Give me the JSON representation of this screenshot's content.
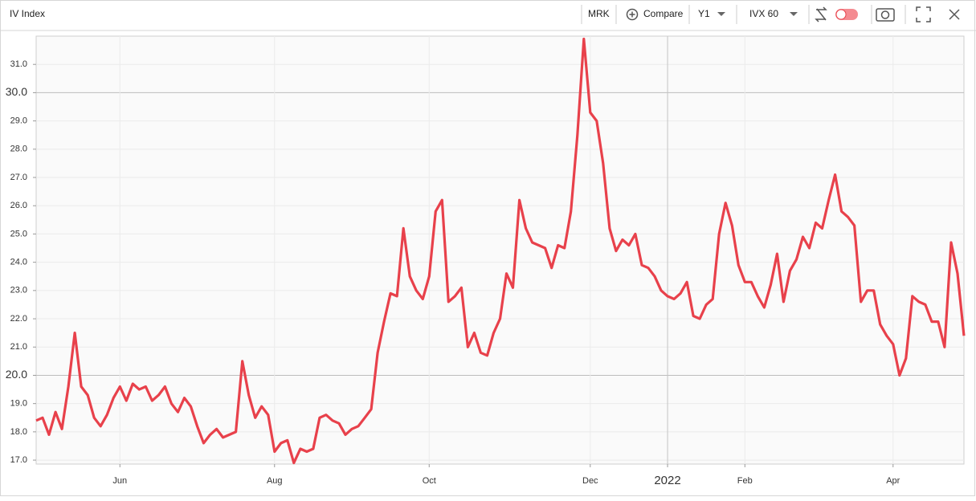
{
  "chart_data": {
    "type": "line",
    "title": "IV Index",
    "toolbar": {
      "symbol": "MRK",
      "compare": "Compare",
      "period": "Y1",
      "indicator": "IVX 60"
    },
    "color": "#e8414b",
    "categories": [
      null,
      null,
      null,
      null,
      null,
      null,
      null,
      null,
      null,
      null,
      null,
      null,
      null,
      "Jun",
      null,
      null,
      null,
      null,
      null,
      null,
      null,
      null,
      null,
      null,
      null,
      null,
      null,
      null,
      null,
      null,
      null,
      null,
      null,
      null,
      null,
      null,
      null,
      "Aug",
      null,
      null,
      null,
      null,
      null,
      null,
      null,
      null,
      null,
      null,
      null,
      null,
      null,
      null,
      null,
      null,
      null,
      null,
      null,
      null,
      null,
      null,
      null,
      "Oct",
      null,
      null,
      null,
      null,
      null,
      null,
      null,
      null,
      null,
      null,
      null,
      null,
      null,
      null,
      null,
      null,
      null,
      null,
      null,
      null,
      null,
      null,
      null,
      null,
      "Dec",
      null,
      null,
      null,
      null,
      null,
      null,
      null,
      null,
      null,
      null,
      null,
      "2022",
      null,
      null,
      null,
      null,
      null,
      null,
      null,
      null,
      null,
      null,
      null,
      "Feb",
      null,
      null,
      null,
      null,
      null,
      null,
      null,
      null,
      null,
      null,
      null,
      null,
      null,
      null,
      null,
      null,
      null,
      null,
      null,
      null,
      null,
      null,
      "Apr",
      null,
      null,
      null,
      null,
      null,
      null,
      null,
      null,
      null,
      null,
      null
    ],
    "values": [
      18.4,
      18.5,
      17.9,
      18.7,
      18.1,
      19.6,
      21.5,
      19.6,
      19.3,
      18.5,
      18.2,
      18.6,
      19.2,
      19.6,
      19.1,
      19.7,
      19.5,
      19.6,
      19.1,
      19.3,
      19.6,
      19.0,
      18.7,
      19.2,
      18.9,
      18.2,
      17.6,
      17.9,
      18.1,
      17.8,
      17.9,
      18.0,
      20.5,
      19.3,
      18.5,
      18.9,
      18.6,
      17.3,
      17.6,
      17.7,
      16.9,
      17.4,
      17.3,
      17.4,
      18.5,
      18.6,
      18.4,
      18.3,
      17.9,
      18.1,
      18.2,
      18.5,
      18.8,
      20.8,
      21.9,
      22.9,
      22.8,
      25.2,
      23.5,
      23.0,
      22.7,
      23.5,
      25.8,
      26.2,
      22.6,
      22.8,
      23.1,
      21.0,
      21.5,
      20.8,
      20.7,
      21.5,
      22.0,
      23.6,
      23.1,
      26.2,
      25.2,
      24.7,
      24.6,
      24.5,
      23.8,
      24.6,
      24.5,
      25.8,
      28.5,
      31.9,
      29.3,
      29.0,
      27.5,
      25.2,
      24.4,
      24.8,
      24.6,
      25.0,
      23.9,
      23.8,
      23.5,
      23.0,
      22.8,
      22.7,
      22.9,
      23.3,
      22.1,
      22.0,
      22.5,
      22.7,
      25.0,
      26.1,
      25.3,
      23.9,
      23.3,
      23.3,
      22.8,
      22.4,
      23.2,
      24.3,
      22.6,
      23.7,
      24.1,
      24.9,
      24.5,
      25.4,
      25.2,
      26.2,
      27.1,
      25.8,
      25.6,
      25.3,
      22.6,
      23.0,
      23.0,
      21.8,
      21.4,
      21.1,
      20.0,
      20.6,
      22.8,
      22.6,
      22.5,
      21.9,
      21.9,
      21.0,
      24.7,
      23.6,
      21.4
    ],
    "ylim": [
      16.86,
      32.0
    ],
    "yticks": [
      {
        "value": 17,
        "label": "17.0"
      },
      {
        "value": 18,
        "label": "18.0"
      },
      {
        "value": 19,
        "label": "19.0"
      },
      {
        "value": 20,
        "label": "20.0"
      },
      {
        "value": 21,
        "label": "21.0"
      },
      {
        "value": 22,
        "label": "22.0"
      },
      {
        "value": 23,
        "label": "23.0"
      },
      {
        "value": 24,
        "label": "24.0"
      },
      {
        "value": 25,
        "label": "25.0"
      },
      {
        "value": 26,
        "label": "26.0"
      },
      {
        "value": 27,
        "label": "27.0"
      },
      {
        "value": 28,
        "label": "28.0"
      },
      {
        "value": 29,
        "label": "29.0"
      },
      {
        "value": 30,
        "label": "30.0"
      },
      {
        "value": 31,
        "label": "31.0"
      }
    ],
    "grid": true
  }
}
